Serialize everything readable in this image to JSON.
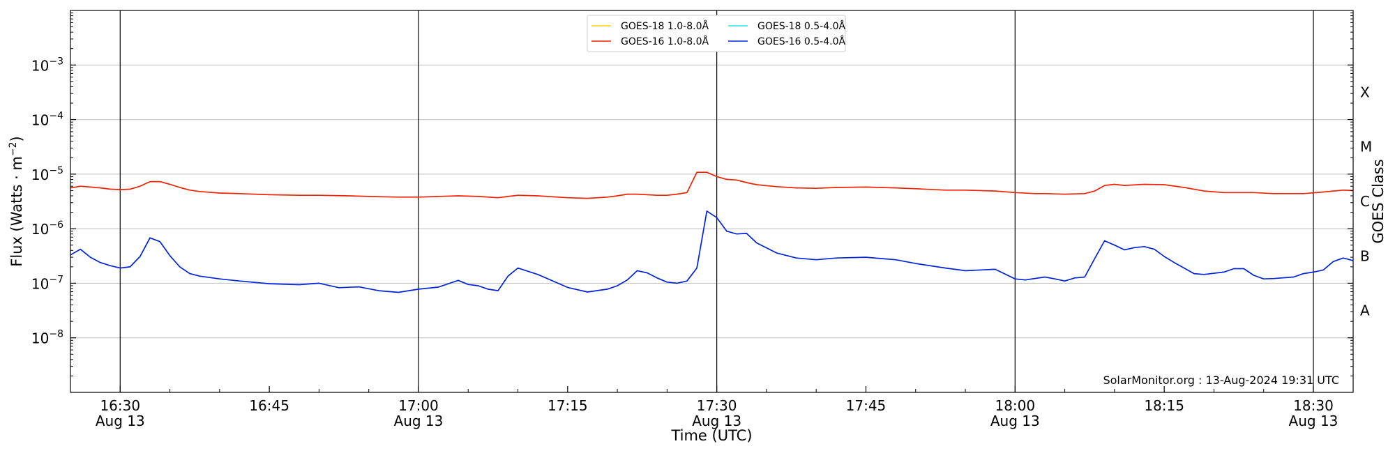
{
  "chart_data": {
    "type": "line",
    "title": "",
    "xlabel": "Time (UTC)",
    "ylabel_main": "Flux (Watts · m",
    "ylabel_sup": "−2",
    "ylabel_close": ")",
    "right_label": "GOES Class",
    "y_scale": "log",
    "x_range": [
      "16:25",
      "18:34"
    ],
    "ylim": [
      1e-09,
      0.01
    ],
    "grid": true,
    "legend_placement": "top-center",
    "y_ticks": [
      {
        "value": 1e-08,
        "base": "10",
        "exp": "−8"
      },
      {
        "value": 1e-07,
        "base": "10",
        "exp": "−7"
      },
      {
        "value": 1e-06,
        "base": "10",
        "exp": "−6"
      },
      {
        "value": 1e-05,
        "base": "10",
        "exp": "−5"
      },
      {
        "value": 0.0001,
        "base": "10",
        "exp": "−4"
      },
      {
        "value": 0.001,
        "base": "10",
        "exp": "−3"
      }
    ],
    "x_ticks": [
      {
        "time": "16:30",
        "label": "16:30",
        "date": "Aug 13"
      },
      {
        "time": "16:45",
        "label": "16:45",
        "date": ""
      },
      {
        "time": "17:00",
        "label": "17:00",
        "date": "Aug 13"
      },
      {
        "time": "17:15",
        "label": "17:15",
        "date": ""
      },
      {
        "time": "17:30",
        "label": "17:30",
        "date": "Aug 13"
      },
      {
        "time": "17:45",
        "label": "17:45",
        "date": ""
      },
      {
        "time": "18:00",
        "label": "18:00",
        "date": "Aug 13"
      },
      {
        "time": "18:15",
        "label": "18:15",
        "date": ""
      },
      {
        "time": "18:30",
        "label": "18:30",
        "date": "Aug 13"
      }
    ],
    "vertical_lines": [
      "16:30",
      "17:00",
      "17:30",
      "18:00",
      "18:30"
    ],
    "goes_classes": [
      {
        "label": "A",
        "value": 3.16e-08
      },
      {
        "label": "B",
        "value": 3.16e-07
      },
      {
        "label": "C",
        "value": 3.16e-06
      },
      {
        "label": "M",
        "value": 3.16e-05
      },
      {
        "label": "X",
        "value": 0.000316
      }
    ],
    "series": [
      {
        "name": "GOES-18 1.0-8.0Å",
        "color": "#f5d000",
        "x": [],
        "y": []
      },
      {
        "name": "GOES-16 1.0-8.0Å",
        "color": "#ee2200",
        "x": [
          "16:25",
          "16:26",
          "16:27",
          "16:28",
          "16:29",
          "16:30",
          "16:31",
          "16:32",
          "16:33",
          "16:34",
          "16:35",
          "16:36",
          "16:37",
          "16:38",
          "16:40",
          "16:42",
          "16:45",
          "16:48",
          "16:50",
          "16:53",
          "16:55",
          "16:58",
          "17:00",
          "17:02",
          "17:04",
          "17:06",
          "17:08",
          "17:09",
          "17:10",
          "17:12",
          "17:15",
          "17:17",
          "17:19",
          "17:20",
          "17:21",
          "17:22",
          "17:24",
          "17:25",
          "17:26",
          "17:27",
          "17:28",
          "17:29",
          "17:30",
          "17:31",
          "17:32",
          "17:33",
          "17:34",
          "17:36",
          "17:38",
          "17:40",
          "17:42",
          "17:45",
          "17:48",
          "17:50",
          "17:53",
          "17:55",
          "17:58",
          "18:00",
          "18:02",
          "18:03",
          "18:05",
          "18:07",
          "18:08",
          "18:09",
          "18:10",
          "18:11",
          "18:13",
          "18:15",
          "18:17",
          "18:19",
          "18:21",
          "18:24",
          "18:26",
          "18:29",
          "18:31",
          "18:33",
          "18:34"
        ],
        "y": [
          5.6e-06,
          6e-06,
          5.8e-06,
          5.6e-06,
          5.3e-06,
          5.2e-06,
          5.3e-06,
          6e-06,
          7.3e-06,
          7.3e-06,
          6.5e-06,
          5.7e-06,
          5.1e-06,
          4.8e-06,
          4.5e-06,
          4.4e-06,
          4.2e-06,
          4.1e-06,
          4.1e-06,
          4e-06,
          3.9e-06,
          3.8e-06,
          3.8e-06,
          3.9e-06,
          4e-06,
          3.9e-06,
          3.7e-06,
          3.9e-06,
          4.1e-06,
          4e-06,
          3.7e-06,
          3.6e-06,
          3.8e-06,
          4e-06,
          4.3e-06,
          4.3e-06,
          4.1e-06,
          4.1e-06,
          4.3e-06,
          4.6e-06,
          1.08e-05,
          1.08e-05,
          9e-06,
          8e-06,
          7.8e-06,
          7e-06,
          6.4e-06,
          5.9e-06,
          5.6e-06,
          5.5e-06,
          5.7e-06,
          5.8e-06,
          5.6e-06,
          5.4e-06,
          5.1e-06,
          5.1e-06,
          4.9e-06,
          4.6e-06,
          4.4e-06,
          4.4e-06,
          4.3e-06,
          4.4e-06,
          4.9e-06,
          6.2e-06,
          6.5e-06,
          6.2e-06,
          6.5e-06,
          6.4e-06,
          5.7e-06,
          4.9e-06,
          4.6e-06,
          4.6e-06,
          4.4e-06,
          4.4e-06,
          4.7e-06,
          5.1e-06,
          5e-06
        ]
      },
      {
        "name": "GOES-18 0.5-4.0Å",
        "color": "#1ee6e6",
        "x": [],
        "y": []
      },
      {
        "name": "GOES-16 0.5-4.0Å",
        "color": "#0022dd",
        "x": [
          "16:25",
          "16:26",
          "16:27",
          "16:28",
          "16:29",
          "16:30",
          "16:31",
          "16:32",
          "16:33",
          "16:34",
          "16:35",
          "16:36",
          "16:37",
          "16:38",
          "16:40",
          "16:42",
          "16:45",
          "16:48",
          "16:50",
          "16:52",
          "16:54",
          "16:56",
          "16:58",
          "17:00",
          "17:02",
          "17:04",
          "17:05",
          "17:06",
          "17:07",
          "17:08",
          "17:09",
          "17:10",
          "17:12",
          "17:15",
          "17:17",
          "17:19",
          "17:20",
          "17:21",
          "17:22",
          "17:23",
          "17:24",
          "17:25",
          "17:26",
          "17:27",
          "17:28",
          "17:29",
          "17:30",
          "17:31",
          "17:32",
          "17:33",
          "17:34",
          "17:36",
          "17:38",
          "17:40",
          "17:42",
          "17:45",
          "17:48",
          "17:50",
          "17:53",
          "17:55",
          "17:58",
          "18:00",
          "18:01",
          "18:03",
          "18:04",
          "18:05",
          "18:06",
          "18:07",
          "18:08",
          "18:09",
          "18:10",
          "18:11",
          "18:12",
          "18:13",
          "18:14",
          "18:15",
          "18:16",
          "18:18",
          "18:19",
          "18:21",
          "18:22",
          "18:23",
          "18:24",
          "18:25",
          "18:26",
          "18:28",
          "18:29",
          "18:30",
          "18:31",
          "18:32",
          "18:33",
          "18:34"
        ],
        "y": [
          3.3e-07,
          4.2e-07,
          3e-07,
          2.4e-07,
          2.1e-07,
          1.9e-07,
          2e-07,
          3.1e-07,
          6.8e-07,
          5.8e-07,
          3.2e-07,
          2e-07,
          1.5e-07,
          1.35e-07,
          1.2e-07,
          1.1e-07,
          9.8e-08,
          9.4e-08,
          1e-07,
          8.3e-08,
          8.6e-08,
          7.3e-08,
          6.8e-08,
          7.8e-08,
          8.5e-08,
          1.13e-07,
          9.5e-08,
          9e-08,
          7.8e-08,
          7.3e-08,
          1.35e-07,
          1.9e-07,
          1.45e-07,
          8.4e-08,
          6.9e-08,
          7.8e-08,
          9e-08,
          1.15e-07,
          1.7e-07,
          1.55e-07,
          1.25e-07,
          1.05e-07,
          1e-07,
          1.1e-07,
          1.9e-07,
          2.1e-06,
          1.6e-06,
          9e-07,
          8e-07,
          8.2e-07,
          5.5e-07,
          3.6e-07,
          2.9e-07,
          2.7e-07,
          2.9e-07,
          3e-07,
          2.7e-07,
          2.3e-07,
          1.9e-07,
          1.7e-07,
          1.8e-07,
          1.2e-07,
          1.15e-07,
          1.3e-07,
          1.2e-07,
          1.1e-07,
          1.25e-07,
          1.3e-07,
          2.8e-07,
          6e-07,
          5e-07,
          4.1e-07,
          4.5e-07,
          4.7e-07,
          4.2e-07,
          3.1e-07,
          2.4e-07,
          1.5e-07,
          1.45e-07,
          1.6e-07,
          1.85e-07,
          1.85e-07,
          1.4e-07,
          1.2e-07,
          1.22e-07,
          1.3e-07,
          1.5e-07,
          1.6e-07,
          1.75e-07,
          2.5e-07,
          2.9e-07,
          2.6e-07
        ]
      }
    ],
    "credit": "SolarMonitor.org : 13-Aug-2024 19:31 UTC"
  }
}
